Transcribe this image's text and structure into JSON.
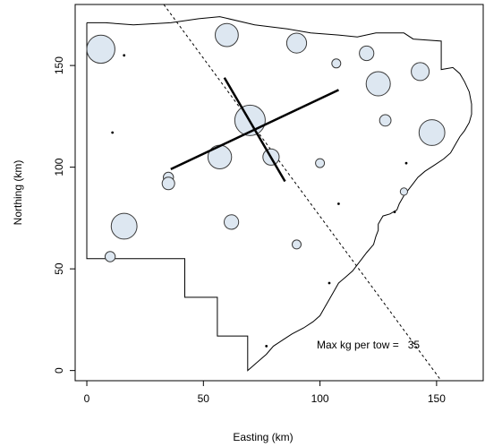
{
  "chart_data": {
    "type": "scatter",
    "xlabel": "Easting (km)",
    "ylabel": "Northing (km)",
    "xlim": [
      -5,
      170
    ],
    "ylim": [
      -5,
      180
    ],
    "x_ticks": [
      0,
      50,
      100,
      150
    ],
    "y_ticks": [
      0,
      50,
      100,
      150
    ],
    "grid": false,
    "annotation": "Max kg per tow =   35",
    "max_kg_per_tow": 35,
    "point_fill": "#dde7f1",
    "point_stroke": "#3a3a3a",
    "boundary": [
      [
        0,
        171
      ],
      [
        0,
        55
      ],
      [
        42,
        55
      ],
      [
        42,
        36
      ],
      [
        56,
        36
      ],
      [
        56,
        17
      ],
      [
        69,
        17
      ],
      [
        69,
        0
      ],
      [
        71,
        2
      ],
      [
        74,
        5
      ],
      [
        77,
        8
      ],
      [
        80,
        12
      ],
      [
        84,
        15
      ],
      [
        88,
        18
      ],
      [
        93,
        21
      ],
      [
        97,
        24
      ],
      [
        100,
        27
      ],
      [
        102,
        31
      ],
      [
        104,
        35
      ],
      [
        106,
        39
      ],
      [
        108,
        43
      ],
      [
        111,
        46
      ],
      [
        114,
        49
      ],
      [
        116,
        52
      ],
      [
        118,
        55
      ],
      [
        120,
        58
      ],
      [
        123,
        62
      ],
      [
        124,
        66
      ],
      [
        125,
        69
      ],
      [
        125,
        72
      ],
      [
        126,
        74
      ],
      [
        127,
        76
      ],
      [
        130,
        77
      ],
      [
        133,
        79
      ],
      [
        134,
        82
      ],
      [
        136,
        86
      ],
      [
        138,
        89
      ],
      [
        140,
        92
      ],
      [
        142,
        95
      ],
      [
        145,
        98
      ],
      [
        149,
        101
      ],
      [
        153,
        104
      ],
      [
        156,
        107
      ],
      [
        158,
        111
      ],
      [
        160,
        115
      ],
      [
        162,
        118
      ],
      [
        164,
        122
      ],
      [
        165,
        126
      ],
      [
        165,
        131
      ],
      [
        164,
        137
      ],
      [
        162,
        142
      ],
      [
        160,
        146
      ],
      [
        157,
        149
      ],
      [
        152,
        148
      ],
      [
        152,
        162
      ],
      [
        140,
        163
      ],
      [
        136,
        166
      ],
      [
        124,
        166
      ],
      [
        116,
        164
      ],
      [
        108,
        165
      ],
      [
        96,
        166
      ],
      [
        86,
        168
      ],
      [
        72,
        170
      ],
      [
        57,
        174
      ],
      [
        48,
        173
      ],
      [
        36,
        171
      ],
      [
        20,
        170
      ],
      [
        8,
        171
      ],
      [
        0,
        171
      ]
    ],
    "dashed_line": [
      [
        33,
        180
      ],
      [
        152,
        -5
      ]
    ],
    "axis_lines": [
      {
        "x": [
          36,
          108
        ],
        "y": [
          99,
          138
        ]
      },
      {
        "x": [
          59,
          85
        ],
        "y": [
          144,
          93
        ]
      }
    ],
    "points": [
      {
        "x": 6,
        "y": 158,
        "kg": 30
      },
      {
        "x": 16,
        "y": 71,
        "kg": 25
      },
      {
        "x": 10,
        "y": 56,
        "kg": 4
      },
      {
        "x": 11,
        "y": 117,
        "kg": 0.05
      },
      {
        "x": 16,
        "y": 155,
        "kg": 0.05
      },
      {
        "x": 35,
        "y": 95,
        "kg": 4
      },
      {
        "x": 35,
        "y": 92,
        "kg": 6
      },
      {
        "x": 60,
        "y": 165,
        "kg": 20
      },
      {
        "x": 57,
        "y": 105,
        "kg": 21
      },
      {
        "x": 70,
        "y": 123,
        "kg": 35
      },
      {
        "x": 79,
        "y": 105,
        "kg": 10
      },
      {
        "x": 62,
        "y": 73,
        "kg": 8
      },
      {
        "x": 90,
        "y": 161,
        "kg": 15
      },
      {
        "x": 90,
        "y": 62,
        "kg": 3
      },
      {
        "x": 100,
        "y": 102,
        "kg": 3
      },
      {
        "x": 107,
        "y": 151,
        "kg": 3
      },
      {
        "x": 108,
        "y": 82,
        "kg": 0.05
      },
      {
        "x": 104,
        "y": 43,
        "kg": 0.05
      },
      {
        "x": 77,
        "y": 12,
        "kg": 0.05
      },
      {
        "x": 120,
        "y": 156,
        "kg": 8
      },
      {
        "x": 125,
        "y": 141,
        "kg": 22
      },
      {
        "x": 128,
        "y": 123,
        "kg": 5
      },
      {
        "x": 136,
        "y": 88,
        "kg": 2
      },
      {
        "x": 137,
        "y": 102,
        "kg": 0.05
      },
      {
        "x": 132,
        "y": 78,
        "kg": 0.05
      },
      {
        "x": 143,
        "y": 147,
        "kg": 12
      },
      {
        "x": 148,
        "y": 117,
        "kg": 25
      }
    ]
  }
}
